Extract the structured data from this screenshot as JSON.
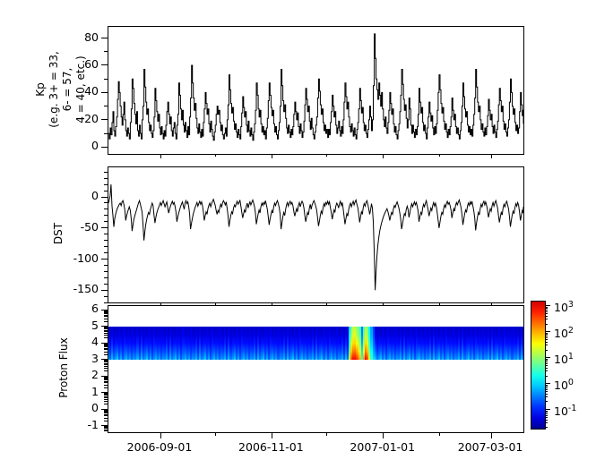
{
  "figure": {
    "background": "#ffffff",
    "series_color": "#000000"
  },
  "x_axis": {
    "tick_labels": [
      "2006-09-01",
      "2006-11-01",
      "2007-01-01",
      "2007-03-01"
    ],
    "tick_days": [
      30,
      91,
      152,
      211
    ],
    "minor_tick_days": [
      60,
      121,
      183
    ],
    "day_start": 1.5,
    "day_end": 228.5
  },
  "chart_data": [
    {
      "type": "line",
      "name": "kp-index",
      "ylabel_lines": [
        "Kp",
        "(e.g. 3+ = 33,",
        "6- = 57,",
        "4 = 40, etc.)"
      ],
      "ylim": [
        -5,
        88
      ],
      "ytick_labels": [
        "0",
        "20",
        "40",
        "60",
        "80"
      ],
      "yticks": [
        0,
        20,
        40,
        60,
        80
      ],
      "yminor": [
        10,
        30,
        50,
        70
      ],
      "x_start_day": 1.5,
      "x_step_days": 0.5,
      "line_style": "steps",
      "values": [
        10,
        6,
        14,
        9,
        18,
        26,
        12,
        8,
        15,
        22,
        35,
        48,
        40,
        30,
        22,
        16,
        24,
        33,
        20,
        12,
        8,
        14,
        10,
        6,
        18,
        28,
        50,
        43,
        32,
        24,
        17,
        26,
        12,
        8,
        16,
        10,
        6,
        20,
        30,
        57,
        44,
        33,
        24,
        28,
        18,
        12,
        16,
        10,
        7,
        12,
        22,
        43,
        34,
        26,
        19,
        24,
        14,
        9,
        15,
        10,
        6,
        12,
        8,
        16,
        26,
        33,
        24,
        17,
        22,
        12,
        8,
        14,
        18,
        10,
        6,
        16,
        24,
        47,
        38,
        28,
        20,
        27,
        16,
        11,
        18,
        12,
        7,
        15,
        9,
        22,
        36,
        60,
        47,
        36,
        27,
        32,
        21,
        14,
        10,
        17,
        11,
        7,
        13,
        8,
        18,
        28,
        40,
        32,
        24,
        28,
        17,
        11,
        19,
        13,
        8,
        5,
        11,
        16,
        24,
        30,
        24,
        27,
        18,
        12,
        16,
        9,
        6,
        10,
        14,
        8,
        20,
        31,
        53,
        42,
        32,
        25,
        29,
        19,
        13,
        17,
        11,
        7,
        13,
        9,
        6,
        15,
        25,
        37,
        29,
        22,
        26,
        16,
        11,
        19,
        12,
        8,
        14,
        9,
        5,
        11,
        17,
        27,
        47,
        38,
        28,
        22,
        27,
        17,
        11,
        15,
        9,
        12,
        6,
        14,
        21,
        34,
        47,
        38,
        29,
        23,
        27,
        17,
        11,
        15,
        9,
        6,
        12,
        18,
        30,
        57,
        45,
        34,
        26,
        31,
        21,
        14,
        10,
        16,
        11,
        7,
        13,
        9,
        15,
        24,
        33,
        26,
        20,
        25,
        15,
        10,
        17,
        12,
        7,
        11,
        19,
        31,
        43,
        35,
        26,
        30,
        19,
        13,
        21,
        14,
        9,
        6,
        11,
        16,
        22,
        36,
        50,
        41,
        31,
        24,
        28,
        18,
        12,
        16,
        10,
        13,
        7,
        13,
        9,
        18,
        26,
        38,
        30,
        22,
        26,
        16,
        10,
        14,
        19,
        12,
        8,
        15,
        10,
        20,
        33,
        47,
        37,
        28,
        33,
        22,
        15,
        11,
        17,
        12,
        8,
        14,
        9,
        6,
        13,
        18,
        28,
        43,
        34,
        25,
        29,
        18,
        12,
        16,
        10,
        7,
        13,
        20,
        30,
        22,
        12,
        20,
        45,
        83,
        65,
        50,
        42,
        35,
        47,
        38,
        30,
        40,
        28,
        20,
        15,
        22,
        14,
        10,
        18,
        27,
        40,
        32,
        24,
        28,
        17,
        11,
        15,
        9,
        6,
        12,
        17,
        26,
        38,
        57,
        46,
        35,
        27,
        31,
        21,
        14,
        20,
        36,
        28,
        16,
        10,
        16,
        11,
        7,
        13,
        9,
        15,
        24,
        43,
        33,
        25,
        29,
        18,
        12,
        16,
        10,
        6,
        14,
        22,
        33,
        25,
        19,
        23,
        14,
        9,
        15,
        10,
        17,
        27,
        40,
        53,
        42,
        32,
        25,
        29,
        19,
        13,
        17,
        11,
        7,
        13,
        9,
        15,
        22,
        36,
        27,
        20,
        24,
        15,
        10,
        14,
        9,
        6,
        12,
        18,
        30,
        47,
        37,
        28,
        22,
        26,
        16,
        11,
        15,
        9,
        13,
        8,
        16,
        24,
        36,
        57,
        44,
        33,
        26,
        30,
        20,
        13,
        17,
        11,
        8,
        14,
        9,
        15,
        23,
        35,
        27,
        20,
        24,
        15,
        10,
        16,
        11,
        7,
        13,
        19,
        31,
        43,
        34,
        26,
        30,
        19,
        13,
        17,
        11,
        8,
        14,
        20,
        33,
        50,
        40,
        30,
        24,
        28,
        18,
        12,
        16,
        10,
        14,
        26,
        40,
        31,
        23,
        27,
        17
      ]
    },
    {
      "type": "line",
      "name": "dst-index",
      "ylabel": "DST",
      "ylim": [
        -170,
        46
      ],
      "ytick_labels": [
        "0",
        "-50",
        "-100",
        "-150"
      ],
      "yticks": [
        0,
        -50,
        -100,
        -150
      ],
      "yminor_step": 10,
      "x_start_day": 1.5,
      "x_step_days": 0.5,
      "line_style": "linear",
      "values": [
        -10,
        -5,
        2,
        20,
        -15,
        -30,
        -48,
        -35,
        -28,
        -22,
        -18,
        -15,
        -12,
        -10,
        -14,
        -8,
        -6,
        -12,
        -20,
        -38,
        -30,
        -25,
        -20,
        -16,
        -22,
        -35,
        -55,
        -45,
        -36,
        -30,
        -25,
        -20,
        -15,
        -10,
        -6,
        -12,
        -18,
        -25,
        -45,
        -70,
        -55,
        -44,
        -36,
        -30,
        -25,
        -28,
        -20,
        -15,
        -10,
        -14,
        -30,
        -42,
        -33,
        -26,
        -21,
        -17,
        -13,
        -9,
        -14,
        -10,
        -6,
        -11,
        -16,
        -12,
        -8,
        -18,
        -26,
        -20,
        -15,
        -11,
        -7,
        -12,
        -9,
        -15,
        -24,
        -40,
        -32,
        -26,
        -21,
        -16,
        -12,
        -8,
        -14,
        -20,
        -10,
        -6,
        -11,
        -8,
        -16,
        -28,
        -52,
        -42,
        -34,
        -27,
        -22,
        -17,
        -13,
        -9,
        -15,
        -11,
        -7,
        -12,
        -8,
        -14,
        -24,
        -38,
        -30,
        -24,
        -28,
        -19,
        -14,
        -10,
        -16,
        -11,
        -7,
        -4,
        -9,
        -14,
        -22,
        -28,
        -22,
        -25,
        -17,
        -12,
        -16,
        -10,
        -6,
        -9,
        -13,
        -8,
        -18,
        -30,
        -48,
        -38,
        -30,
        -24,
        -27,
        -18,
        -13,
        -16,
        -11,
        -7,
        -12,
        -9,
        -5,
        -14,
        -24,
        -34,
        -27,
        -21,
        -25,
        -15,
        -10,
        -18,
        -12,
        -8,
        -13,
        -9,
        -5,
        -10,
        -16,
        -26,
        -44,
        -35,
        -27,
        -21,
        -26,
        -16,
        -10,
        -14,
        -9,
        -12,
        -6,
        -13,
        -20,
        -32,
        -45,
        -36,
        -28,
        -22,
        -26,
        -16,
        -10,
        -14,
        -9,
        -6,
        -11,
        -17,
        -28,
        -52,
        -42,
        -32,
        -25,
        -30,
        -20,
        -13,
        -9,
        -15,
        -10,
        -7,
        -12,
        -9,
        -14,
        -23,
        -31,
        -25,
        -19,
        -24,
        -14,
        -9,
        -16,
        -11,
        -7,
        -10,
        -18,
        -30,
        -40,
        -33,
        -25,
        -29,
        -18,
        -12,
        -20,
        -13,
        -9,
        -6,
        -10,
        -15,
        -21,
        -34,
        -47,
        -39,
        -30,
        -23,
        -27,
        -17,
        -11,
        -15,
        -9,
        -12,
        -7,
        -12,
        -8,
        -17,
        -25,
        -36,
        -28,
        -21,
        -25,
        -15,
        -10,
        -13,
        -18,
        -11,
        -7,
        -14,
        -9,
        -19,
        -31,
        -44,
        -35,
        -27,
        -31,
        -21,
        -14,
        -10,
        -16,
        -11,
        -7,
        -13,
        -8,
        -5,
        -12,
        -17,
        -27,
        -41,
        -32,
        -24,
        -28,
        -17,
        -11,
        -15,
        -9,
        -6,
        -12,
        -19,
        -28,
        -21,
        -11,
        -18,
        -40,
        -90,
        -150,
        -120,
        -95,
        -78,
        -65,
        -55,
        -48,
        -42,
        -37,
        -32,
        -28,
        -25,
        -22,
        -19,
        -24,
        -30,
        -38,
        -31,
        -25,
        -28,
        -19,
        -14,
        -17,
        -12,
        -8,
        -13,
        -18,
        -26,
        -36,
        -52,
        -43,
        -34,
        -27,
        -30,
        -21,
        -15,
        -20,
        -33,
        -26,
        -17,
        -11,
        -16,
        -12,
        -8,
        -13,
        -9,
        -15,
        -23,
        -40,
        -32,
        -25,
        -28,
        -18,
        -12,
        -16,
        -10,
        -6,
        -14,
        -21,
        -31,
        -24,
        -18,
        -22,
        -14,
        -9,
        -15,
        -10,
        -16,
        -26,
        -38,
        -50,
        -40,
        -31,
        -25,
        -28,
        -19,
        -13,
        -17,
        -11,
        -7,
        -12,
        -9,
        -14,
        -21,
        -34,
        -26,
        -19,
        -23,
        -14,
        -9,
        -13,
        -8,
        -5,
        -11,
        -17,
        -28,
        -45,
        -36,
        -27,
        -21,
        -25,
        -15,
        -10,
        -14,
        -8,
        -12,
        -7,
        -15,
        -23,
        -34,
        -54,
        -42,
        -32,
        -25,
        -29,
        -19,
        -12,
        -16,
        -10,
        -7,
        -13,
        -8,
        -14,
        -22,
        -33,
        -26,
        -19,
        -23,
        -14,
        -9,
        -15,
        -10,
        -6,
        -12,
        -18,
        -30,
        -41,
        -32,
        -25,
        -29,
        -18,
        -12,
        -16,
        -10,
        -7,
        -13,
        -19,
        -31,
        -48,
        -38,
        -29,
        -23,
        -27,
        -17,
        -11,
        -15,
        -9,
        -13,
        -25,
        -38,
        -30,
        -22,
        -26,
        -16
      ]
    },
    {
      "type": "heatmap",
      "name": "proton-flux-spectrogram",
      "ylabel": "Proton Flux",
      "ylim": [
        -1.38,
        6.24
      ],
      "ytick_labels": [
        "-1",
        "0",
        "1",
        "2",
        "3",
        "4",
        "5",
        "6"
      ],
      "yticks": [
        -1,
        0,
        1,
        2,
        3,
        4,
        5,
        6
      ],
      "yminor_scale": "log-decade",
      "band_yrange": [
        3,
        5
      ],
      "colormap": "jet",
      "clim_log10": [
        -1.7,
        3.2
      ],
      "quiet_pattern_log10": [
        [
          -1.45,
          -0.35
        ],
        [
          -1.35,
          -0.1
        ],
        [
          -1.5,
          -0.55
        ],
        [
          -1.3,
          -0.05
        ],
        [
          -1.45,
          -0.45
        ],
        [
          -1.4,
          -0.25
        ],
        [
          -1.5,
          0.0
        ],
        [
          -1.32,
          -0.5
        ],
        [
          -1.45,
          -0.15
        ],
        [
          -1.38,
          -0.6
        ],
        [
          -1.3,
          -0.3
        ],
        [
          -1.5,
          -0.08
        ],
        [
          -1.36,
          -0.42
        ],
        [
          -1.45,
          -0.2
        ],
        [
          -1.33,
          -0.55
        ],
        [
          -1.42,
          -0.28
        ]
      ],
      "event": {
        "start_day": 133,
        "columns_log10": [
          [
            0.0,
            1.4
          ],
          [
            0.8,
            2.6
          ],
          [
            1.2,
            3.0
          ],
          [
            1.3,
            3.0
          ],
          [
            1.0,
            2.8
          ],
          [
            0.8,
            2.4
          ],
          [
            0.5,
            2.0
          ],
          [
            -0.5,
            0.5
          ],
          [
            0.6,
            2.2
          ],
          [
            1.2,
            3.0
          ],
          [
            0.9,
            2.6
          ],
          [
            0.2,
            1.4
          ],
          [
            -0.3,
            0.6
          ],
          [
            -0.8,
            0.1
          ]
        ]
      }
    }
  ],
  "colorbar": {
    "tick_base": "10",
    "tick_exponents": [
      "3",
      "2",
      "1",
      "0",
      "-1"
    ],
    "tick_exponent_values": [
      3,
      2,
      1,
      0,
      -1
    ],
    "log_range": [
      -1.7,
      3.2
    ]
  }
}
